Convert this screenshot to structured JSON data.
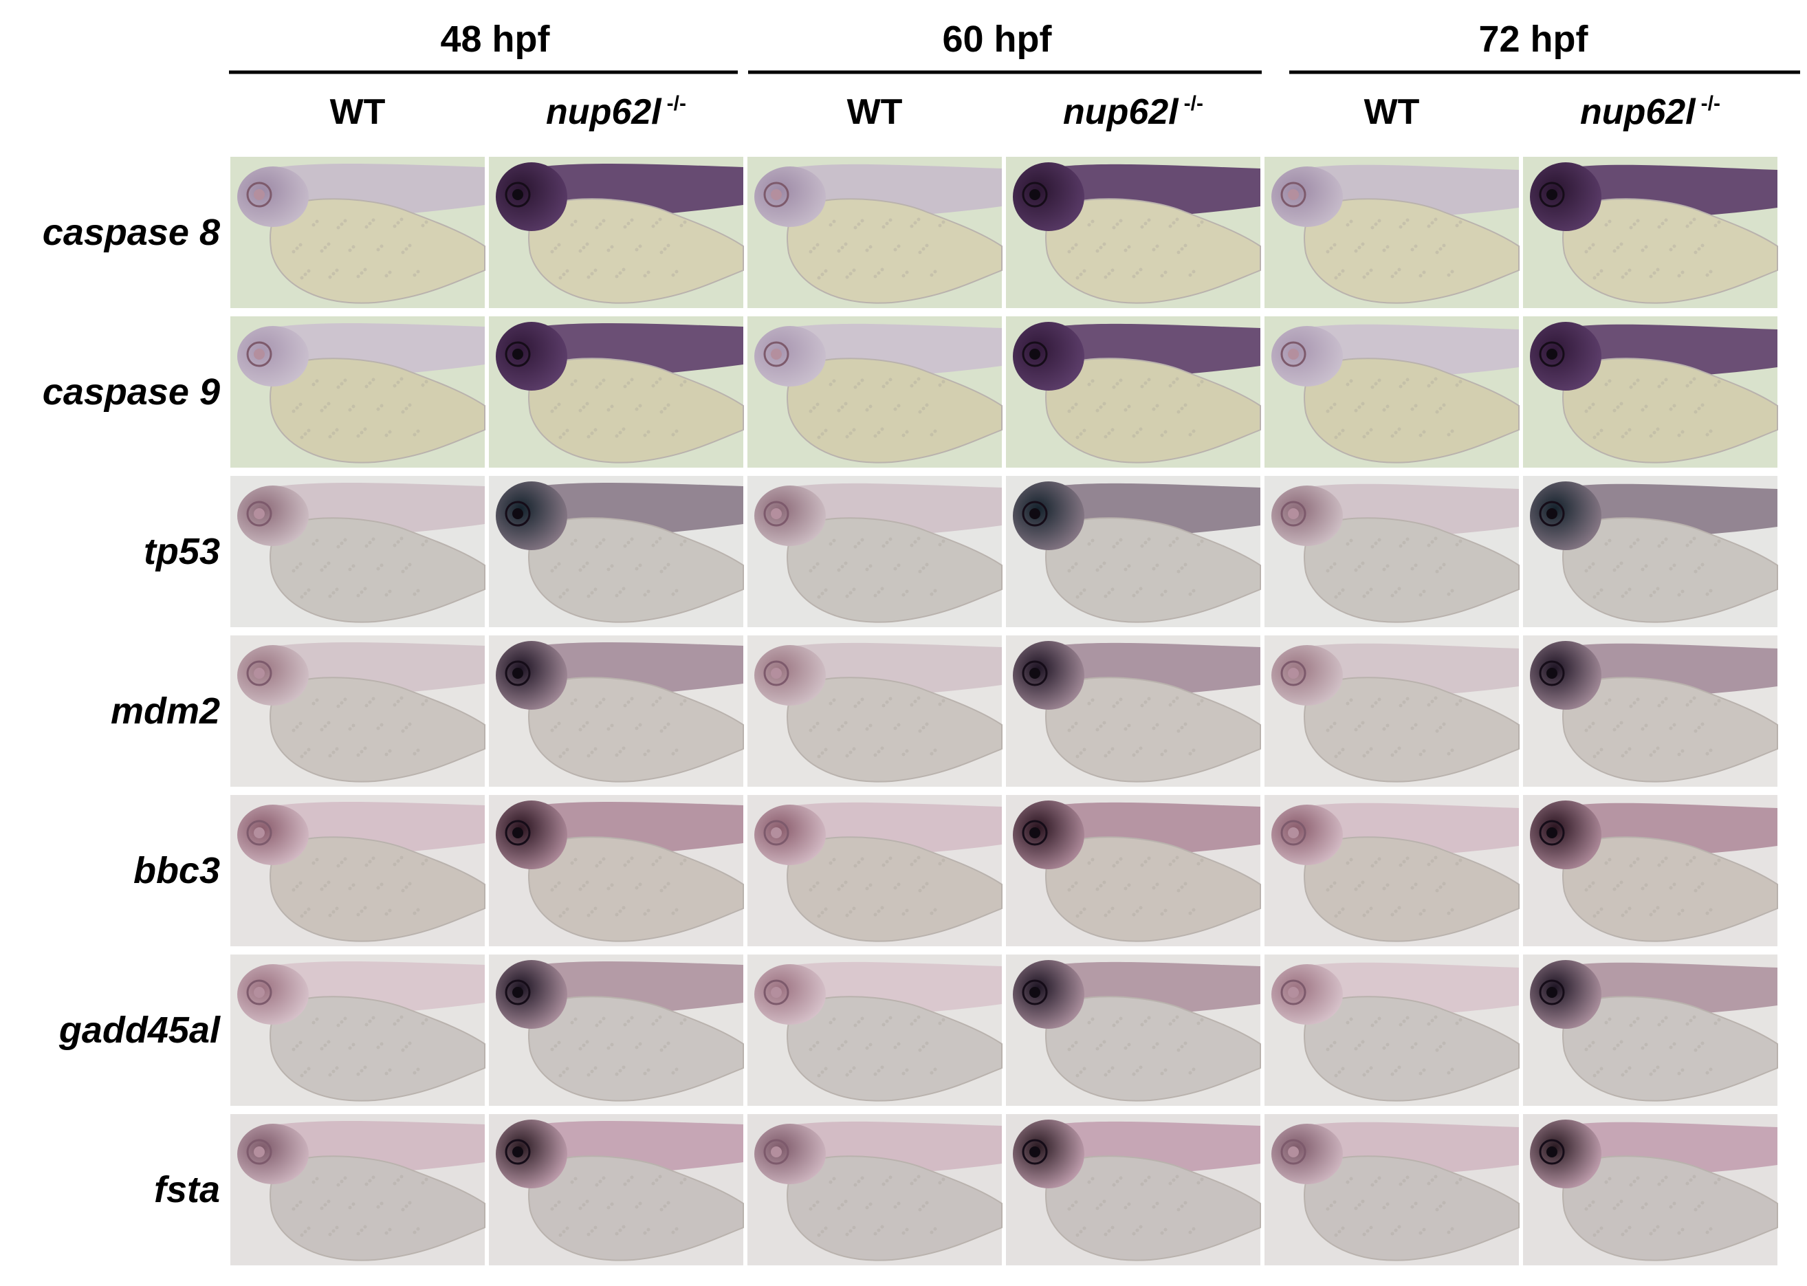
{
  "stages": [
    {
      "label": "48 hpf",
      "genotypes": [
        {
          "label": "WT",
          "italic": false,
          "sup": ""
        },
        {
          "label": "nup62l",
          "italic": true,
          "sup": "-/-"
        }
      ]
    },
    {
      "label": "60 hpf",
      "genotypes": [
        {
          "label": "WT",
          "italic": false,
          "sup": ""
        },
        {
          "label": "nup62l",
          "italic": true,
          "sup": "-/-"
        }
      ]
    },
    {
      "label": "72 hpf",
      "genotypes": [
        {
          "label": "WT",
          "italic": false,
          "sup": ""
        },
        {
          "label": "nup62l",
          "italic": true,
          "sup": "-/-"
        }
      ]
    }
  ],
  "genes": [
    {
      "label": "caspase 8",
      "bg": "#d9e2cc",
      "yolk": "#d6d2b4",
      "wt": "#9d8aa6",
      "mut": "#2a1530",
      "body_wt": "#c7bccb",
      "body_mut": "#5a3b68"
    },
    {
      "label": "caspase 9",
      "bg": "#d9e2cc",
      "yolk": "#d3cfb0",
      "wt": "#a896b0",
      "mut": "#301838",
      "body_wt": "#cbc1cf",
      "body_mut": "#5e3f6c"
    },
    {
      "label": "tp53",
      "bg": "#e6e6e4",
      "yolk": "#c9c5c0",
      "wt": "#8c6a78",
      "mut": "#14222c",
      "body_wt": "#cfc0c6",
      "body_mut": "#8a7a88"
    },
    {
      "label": "mdm2",
      "bg": "#e7e5e3",
      "yolk": "#cbc5c0",
      "wt": "#9b7682",
      "mut": "#1e1424",
      "body_wt": "#d2c2c8",
      "body_mut": "#a48c9a"
    },
    {
      "label": "bbc3",
      "bg": "#e6e3e2",
      "yolk": "#cbc3bc",
      "wt": "#8a5c6c",
      "mut": "#2a1420",
      "body_wt": "#d4bcc6",
      "body_mut": "#b08c9c"
    },
    {
      "label": "gadd45al",
      "bg": "#e6e4e2",
      "yolk": "#cac5c2",
      "wt": "#9c7281",
      "mut": "#1e1524",
      "body_wt": "#d8c4cc",
      "body_mut": "#ae92a0"
    },
    {
      "label": "fsta",
      "bg": "#e4e1e0",
      "yolk": "#c8c2c0",
      "wt": "#7e5a6a",
      "mut": "#2a1a22",
      "body_wt": "#d0b8c2",
      "body_mut": "#c2a0b0"
    }
  ]
}
